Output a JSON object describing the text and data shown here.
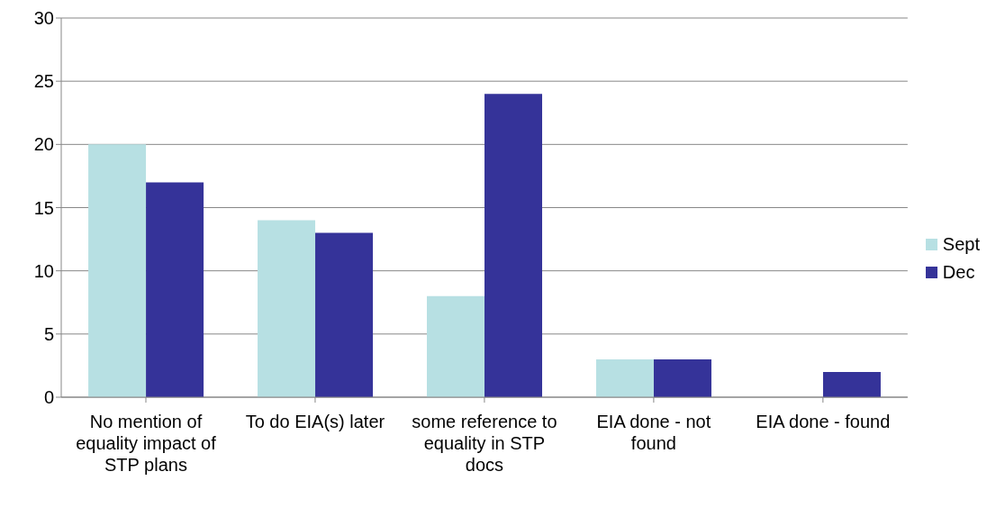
{
  "chart_data": {
    "type": "bar",
    "categories": [
      "No mention of equality impact of STP plans",
      "To do EIA(s) later",
      "some reference to equality in STP docs",
      "EIA done - not found",
      "EIA done - found"
    ],
    "series": [
      {
        "name": "Sept",
        "color": "#b7e0e3",
        "values": [
          20,
          14,
          8,
          3,
          0
        ]
      },
      {
        "name": "Dec",
        "color": "#353399",
        "values": [
          17,
          13,
          24,
          3,
          2
        ]
      }
    ],
    "ylim": [
      0,
      30
    ],
    "yticks": [
      0,
      5,
      10,
      15,
      20,
      25,
      30
    ],
    "grid": "y",
    "legend": "right"
  }
}
